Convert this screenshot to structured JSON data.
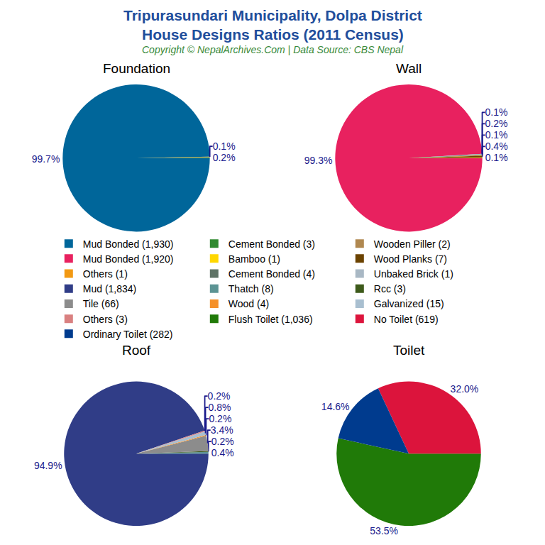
{
  "title": "Tripurasundari Municipality, Dolpa District\nHouse Designs Ratios (2011 Census)",
  "subtitle": "Copyright © NepalArchives.Com | Data Source: CBS Nepal",
  "chart_data": [
    {
      "type": "pie",
      "title": "Foundation",
      "categories": [
        "Mud Bonded (1,930)",
        "Cement Bonded (3)",
        "Wooden Piller (2)"
      ],
      "values": [
        99.7,
        0.2,
        0.1
      ],
      "value_labels": [
        "99.7%",
        "0.2%",
        "0.1%"
      ],
      "colors": [
        "#00669a",
        "#2f8a2f",
        "#b08850"
      ],
      "data_labels": true,
      "legend": "center"
    },
    {
      "type": "pie",
      "title": "Wall",
      "categories": [
        "Mud Bonded (1,920)",
        "Bamboo (1)",
        "Wood Planks (7)",
        "Others (1)",
        "Cement Bonded (4)",
        "Unbaked Brick (1)"
      ],
      "values": [
        99.3,
        0.1,
        0.4,
        0.1,
        0.2,
        0.1
      ],
      "value_labels": [
        "99.3%",
        "0.1%",
        "0.4%",
        "0.1%",
        "0.2%",
        "0.1%"
      ],
      "colors": [
        "#e8215f",
        "#ffd700",
        "#6b4200",
        "#f29913",
        "#5f7366",
        "#a9b8c4"
      ],
      "data_labels": true,
      "legend": "center"
    },
    {
      "type": "pie",
      "title": "Roof",
      "categories": [
        "Mud (1,834)",
        "Thatch (8)",
        "Rcc (3)",
        "Tile (66)",
        "Wood (4)",
        "Galvanized (15)",
        "Others (3)"
      ],
      "values": [
        94.9,
        0.4,
        0.2,
        3.4,
        0.2,
        0.8,
        0.2
      ],
      "value_labels": [
        "94.9%",
        "0.4%",
        "0.2%",
        "3.4%",
        "0.2%",
        "0.8%",
        "0.2%"
      ],
      "colors": [
        "#303d87",
        "#5c9494",
        "#3d5a1a",
        "#8c8c8c",
        "#f5912a",
        "#a9bfd0",
        "#d98080"
      ],
      "data_labels": true,
      "legend": "center"
    },
    {
      "type": "pie",
      "title": "Toilet",
      "categories": [
        "Flush Toilet (1,036)",
        "No Toilet (619)",
        "Ordinary Toilet (282)"
      ],
      "values": [
        53.5,
        32.0,
        14.6
      ],
      "value_labels": [
        "53.5%",
        "32.0%",
        "14.6%"
      ],
      "colors": [
        "#207a08",
        "#dc143c",
        "#003b8e"
      ],
      "data_labels": true,
      "legend": "center"
    }
  ]
}
